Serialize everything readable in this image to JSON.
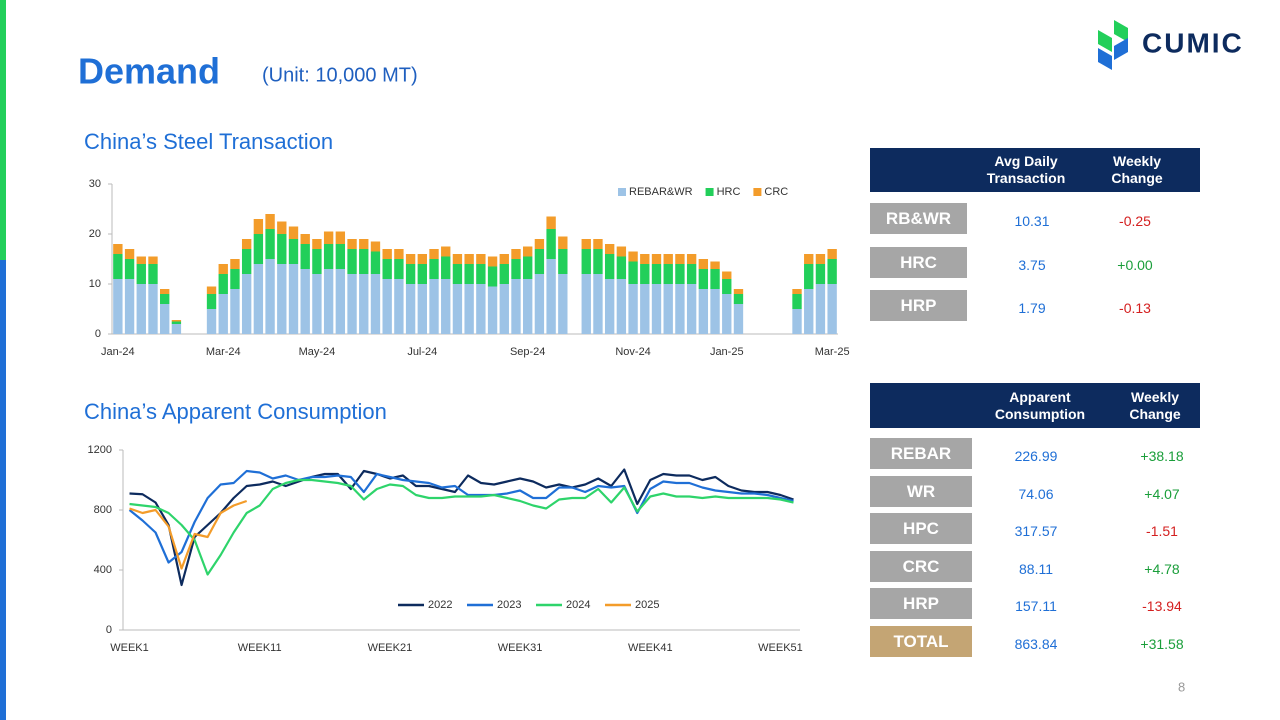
{
  "header": {
    "title": "Demand",
    "unit": "(Unit: 10,000 MT)",
    "logo": "CUMIC",
    "page": "8"
  },
  "chart_data": [
    {
      "type": "bar",
      "stacked": true,
      "title": "China’s Steel Transaction",
      "categories": [
        "Jan-24",
        null,
        null,
        null,
        null,
        null,
        null,
        null,
        null,
        "Mar-24",
        null,
        null,
        null,
        null,
        null,
        null,
        null,
        "May-24",
        null,
        null,
        null,
        null,
        null,
        null,
        null,
        null,
        "Jul-24",
        null,
        null,
        null,
        null,
        null,
        null,
        null,
        null,
        "Sep-24",
        null,
        null,
        null,
        null,
        null,
        null,
        null,
        null,
        "Nov-24",
        null,
        null,
        null,
        null,
        null,
        null,
        null,
        "Jan-25",
        null,
        null,
        null,
        null,
        null,
        null,
        null,
        null,
        "Mar-25"
      ],
      "series": [
        {
          "name": "REBAR&WR",
          "color": "#9dc3e6",
          "values": [
            11,
            11,
            10,
            10,
            6,
            2,
            null,
            null,
            5,
            8,
            9,
            12,
            14,
            15,
            14,
            14,
            13,
            12,
            13,
            13,
            12,
            12,
            12,
            11,
            11,
            10,
            10,
            11,
            11,
            10,
            10,
            10,
            9.5,
            10,
            11,
            11,
            12,
            15,
            12,
            null,
            12,
            12,
            11,
            11,
            10,
            10,
            10,
            10,
            10,
            10,
            9,
            9,
            8,
            6,
            null,
            null,
            null,
            null,
            5,
            9,
            10,
            10
          ]
        },
        {
          "name": "HRC",
          "color": "#22cf5a",
          "values": [
            5,
            4,
            4,
            4,
            2,
            0.5,
            null,
            null,
            3,
            4,
            4,
            5,
            6,
            6,
            6,
            5,
            5,
            5,
            5,
            5,
            5,
            5,
            4.5,
            4,
            4,
            4,
            4,
            4,
            4.5,
            4,
            4,
            4,
            4,
            4,
            4,
            4.5,
            5,
            6,
            5,
            null,
            5,
            5,
            5,
            4.5,
            4.5,
            4,
            4,
            4,
            4,
            4,
            4,
            4,
            3,
            2,
            null,
            null,
            null,
            null,
            3,
            5,
            4,
            5
          ]
        },
        {
          "name": "CRC",
          "color": "#f39c2a",
          "values": [
            2,
            2,
            1.5,
            1.5,
            1,
            0.3,
            null,
            null,
            1.5,
            2,
            2,
            2,
            3,
            3,
            2.5,
            2.5,
            2,
            2,
            2.5,
            2.5,
            2,
            2,
            2,
            2,
            2,
            2,
            2,
            2,
            2,
            2,
            2,
            2,
            2,
            2,
            2,
            2,
            2,
            2.5,
            2.5,
            null,
            2,
            2,
            2,
            2,
            2,
            2,
            2,
            2,
            2,
            2,
            2,
            1.5,
            1.5,
            1,
            null,
            null,
            null,
            null,
            1,
            2,
            2,
            2
          ]
        }
      ],
      "ylim": [
        0,
        30
      ],
      "yticks": [
        0,
        10,
        20,
        30
      ],
      "grid": false,
      "legend": "top-right"
    },
    {
      "type": "line",
      "title": "China’s Apparent Consumption",
      "categories": [
        "WEEK1",
        null,
        null,
        null,
        null,
        null,
        null,
        null,
        null,
        null,
        "WEEK11",
        null,
        null,
        null,
        null,
        null,
        null,
        null,
        null,
        null,
        "WEEK21",
        null,
        null,
        null,
        null,
        null,
        null,
        null,
        null,
        null,
        "WEEK31",
        null,
        null,
        null,
        null,
        null,
        null,
        null,
        null,
        null,
        "WEEK41",
        null,
        null,
        null,
        null,
        null,
        null,
        null,
        null,
        null,
        "WEEK51",
        null
      ],
      "series": [
        {
          "name": "2022",
          "color": "#0d2b5e",
          "values": [
            910,
            905,
            850,
            700,
            300,
            620,
            700,
            780,
            880,
            960,
            970,
            990,
            960,
            990,
            1020,
            1040,
            1040,
            940,
            1060,
            1040,
            1010,
            1030,
            960,
            960,
            940,
            920,
            1030,
            980,
            970,
            990,
            1010,
            990,
            950,
            970,
            950,
            970,
            1010,
            960,
            1070,
            840,
            1000,
            1040,
            1030,
            1030,
            1000,
            1020,
            960,
            930,
            920,
            920,
            900,
            870
          ]
        },
        {
          "name": "2023",
          "color": "#1f6fd6",
          "values": [
            800,
            730,
            650,
            450,
            520,
            720,
            880,
            970,
            980,
            1060,
            1050,
            1010,
            1030,
            1000,
            1020,
            1020,
            1030,
            1020,
            920,
            1040,
            1020,
            1000,
            990,
            980,
            950,
            960,
            900,
            900,
            900,
            910,
            930,
            880,
            880,
            950,
            950,
            920,
            960,
            950,
            960,
            780,
            940,
            990,
            980,
            980,
            950,
            930,
            920,
            910,
            910,
            900,
            880,
            860
          ]
        },
        {
          "name": "2024",
          "color": "#2ed46b",
          "values": [
            840,
            830,
            820,
            780,
            700,
            600,
            370,
            500,
            650,
            780,
            830,
            940,
            980,
            1000,
            1000,
            990,
            980,
            960,
            870,
            940,
            970,
            960,
            900,
            880,
            880,
            890,
            890,
            890,
            900,
            880,
            860,
            830,
            810,
            870,
            880,
            880,
            940,
            850,
            950,
            790,
            890,
            910,
            890,
            890,
            880,
            890,
            880,
            880,
            880,
            880,
            870,
            850
          ]
        },
        {
          "name": "2025",
          "color": "#f39c2a",
          "values": [
            810,
            780,
            800,
            690,
            410,
            640,
            620,
            780,
            830,
            860,
            null,
            null,
            null,
            null,
            null,
            null,
            null,
            null,
            null,
            null,
            null,
            null,
            null,
            null,
            null,
            null,
            null,
            null,
            null,
            null,
            null,
            null,
            null,
            null,
            null,
            null,
            null,
            null,
            null,
            null,
            null,
            null,
            null,
            null,
            null,
            null,
            null,
            null,
            null,
            null,
            null,
            null
          ]
        }
      ],
      "ylim": [
        0,
        1200
      ],
      "yticks": [
        0,
        400,
        800,
        1200
      ],
      "grid": false,
      "legend": "bottom"
    }
  ],
  "tables": [
    {
      "header": [
        "Avg Daily Transaction",
        "Weekly Change"
      ],
      "rows": [
        [
          "RB&WR",
          "10.31",
          "-0.25"
        ],
        [
          "HRC",
          "3.75",
          "+0.00"
        ],
        [
          "HRP",
          "1.79",
          "-0.13"
        ]
      ]
    },
    {
      "header": [
        "Apparent Consumption",
        "Weekly Change"
      ],
      "rows": [
        [
          "REBAR",
          "226.99",
          "+38.18"
        ],
        [
          "WR",
          "74.06",
          "+4.07"
        ],
        [
          "HPC",
          "317.57",
          "-1.51"
        ],
        [
          "CRC",
          "88.11",
          "+4.78"
        ],
        [
          "HRP",
          "157.11",
          "-13.94"
        ],
        [
          "TOTAL",
          "863.84",
          "+31.58"
        ]
      ]
    }
  ]
}
